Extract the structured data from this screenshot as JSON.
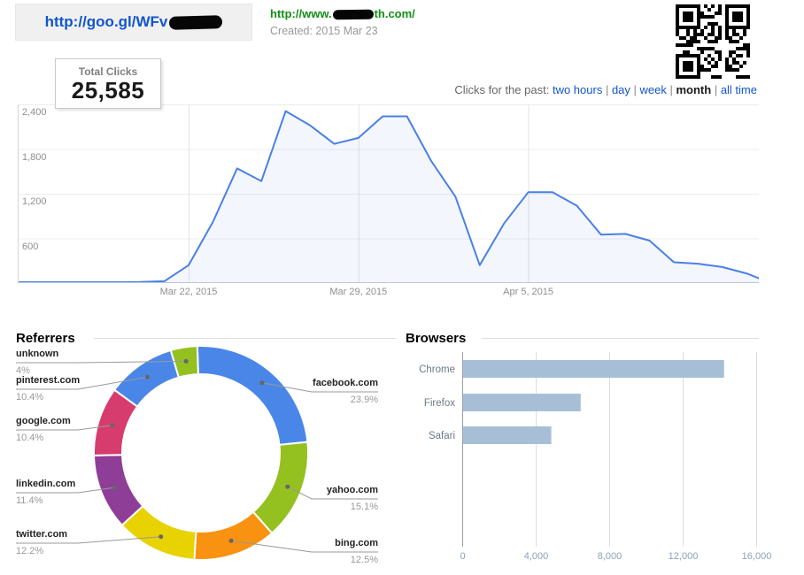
{
  "header": {
    "short_url": "http://goo.gl/WFv",
    "short_url_redacted": "redacted",
    "long_url_prefix": "http://www.",
    "long_url_suffix": "th.com/",
    "long_url_redacted": "redacted",
    "created": "Created: 2015 Mar 23"
  },
  "stats": {
    "total_clicks_label": "Total Clicks",
    "total_clicks_value": "25,585"
  },
  "range_selector": {
    "label": "Clicks for the past:",
    "separator": "|",
    "options": [
      {
        "label": "two hours",
        "selected": false
      },
      {
        "label": "day",
        "selected": false
      },
      {
        "label": "week",
        "selected": false
      },
      {
        "label": "month",
        "selected": true
      },
      {
        "label": "all time",
        "selected": false
      }
    ]
  },
  "sections": {
    "referrers_title": "Referrers",
    "browsers_title": "Browsers"
  },
  "chart_data": [
    {
      "type": "area",
      "name": "clicks-over-time",
      "x": [
        "Mar 15",
        "Mar 16",
        "Mar 17",
        "Mar 18",
        "Mar 19",
        "Mar 20",
        "Mar 21",
        "Mar 22",
        "Mar 23",
        "Mar 24",
        "Mar 25",
        "Mar 26",
        "Mar 27",
        "Mar 28",
        "Mar 29",
        "Mar 30",
        "Mar 31",
        "Apr 1",
        "Apr 2",
        "Apr 3",
        "Apr 4",
        "Apr 5",
        "Apr 6",
        "Apr 7",
        "Apr 8",
        "Apr 9",
        "Apr 10",
        "Apr 11",
        "Apr 12",
        "Apr 13",
        "Apr 14",
        "Apr 15"
      ],
      "values": [
        12,
        12,
        12,
        12,
        12,
        14,
        25,
        240,
        820,
        1540,
        1370,
        2310,
        2120,
        1870,
        1950,
        2240,
        2240,
        1640,
        1160,
        240,
        800,
        1220,
        1220,
        1040,
        650,
        660,
        570,
        280,
        260,
        215,
        130,
        0
      ],
      "x_ticks": [
        {
          "index": 7,
          "label": "Mar 22, 2015"
        },
        {
          "index": 14,
          "label": "Mar 29, 2015"
        },
        {
          "index": 21,
          "label": "Apr 5, 2015"
        }
      ],
      "y_ticks": [
        {
          "value": 600,
          "label": "600"
        },
        {
          "value": 1200,
          "label": "1,200"
        },
        {
          "value": 1800,
          "label": "1,800"
        },
        {
          "value": 2400,
          "label": "2,400"
        }
      ],
      "ylim": [
        0,
        2400
      ],
      "grid": true,
      "legend": "none",
      "line_color": "#4a80e4",
      "fill_color": "rgba(101,141,233,0.08)"
    },
    {
      "type": "pie",
      "name": "referrers",
      "donut": true,
      "title": "Referrers",
      "start_angle_deg": -2,
      "slices": [
        {
          "label": "facebook.com",
          "pct": 23.9,
          "pct_label": "23.9%",
          "color": "#4a86e8",
          "side": "right"
        },
        {
          "label": "yahoo.com",
          "pct": 15.1,
          "pct_label": "15.1%",
          "color": "#94c120",
          "side": "right"
        },
        {
          "label": "bing.com",
          "pct": 12.5,
          "pct_label": "12.5%",
          "color": "#f99210",
          "side": "right"
        },
        {
          "label": "twitter.com",
          "pct": 12.2,
          "pct_label": "12.2%",
          "color": "#e8d202",
          "side": "left"
        },
        {
          "label": "linkedin.com",
          "pct": 11.4,
          "pct_label": "11.4%",
          "color": "#8f3e97",
          "side": "left"
        },
        {
          "label": "google.com",
          "pct": 10.4,
          "pct_label": "10.4%",
          "color": "#d63d6e",
          "side": "left"
        },
        {
          "label": "pinterest.com",
          "pct": 10.4,
          "pct_label": "10.4%",
          "color": "#4a86e8",
          "side": "left"
        },
        {
          "label": "unknown",
          "pct": 4.0,
          "pct_label": "4%",
          "color": "#94c120",
          "side": "left"
        }
      ]
    },
    {
      "type": "bar",
      "name": "browsers",
      "title": "Browsers",
      "orientation": "horizontal",
      "categories": [
        "Chrome",
        "Firefox",
        "Safari"
      ],
      "values": [
        14200,
        6400,
        4800
      ],
      "x_ticks": [
        {
          "value": 0,
          "label": "0"
        },
        {
          "value": 4000,
          "label": "4,000"
        },
        {
          "value": 8000,
          "label": "8,000"
        },
        {
          "value": 12000,
          "label": "12,000"
        },
        {
          "value": 16000,
          "label": "16,000"
        }
      ],
      "xlim": [
        0,
        16700
      ],
      "grid": true,
      "bar_color": "#a7bfd6"
    }
  ]
}
